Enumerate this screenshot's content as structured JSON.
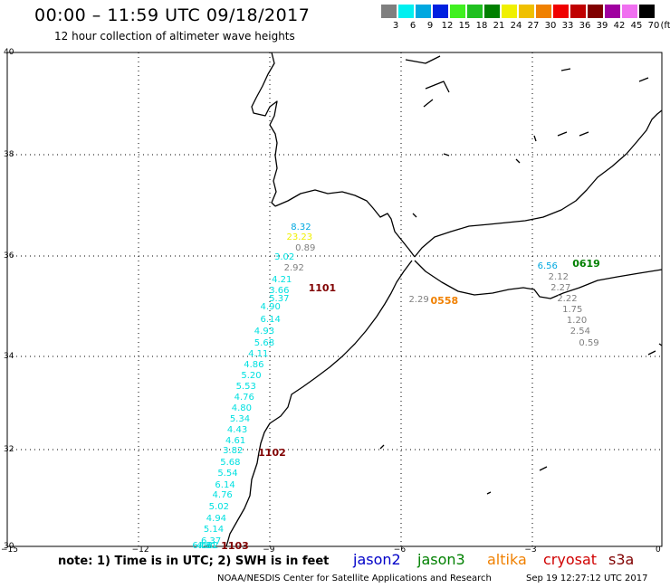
{
  "header": {
    "title": "00:00 – 11:59 UTC 09/18/2017",
    "subtitle": "12 hour collection of altimeter wave heights"
  },
  "legend": {
    "unit": "(ft)",
    "bins": [
      {
        "label": "3",
        "color": "#7f7f7f"
      },
      {
        "label": "6",
        "color": "#00f0f0"
      },
      {
        "label": "9",
        "color": "#00a8e0"
      },
      {
        "label": "12",
        "color": "#0020e0"
      },
      {
        "label": "15",
        "color": "#40f020"
      },
      {
        "label": "18",
        "color": "#20c020"
      },
      {
        "label": "21",
        "color": "#008000"
      },
      {
        "label": "24",
        "color": "#f0f000"
      },
      {
        "label": "27",
        "color": "#f0c000"
      },
      {
        "label": "30",
        "color": "#f08000"
      },
      {
        "label": "33",
        "color": "#f00000"
      },
      {
        "label": "36",
        "color": "#c00000"
      },
      {
        "label": "39",
        "color": "#800000"
      },
      {
        "label": "42",
        "color": "#a000a0"
      },
      {
        "label": "45",
        "color": "#f070f0"
      },
      {
        "label": "70",
        "color": "#000000"
      }
    ]
  },
  "axes": {
    "lat_labels": [
      "40",
      "38",
      "36",
      "34",
      "32",
      "30"
    ],
    "lon_labels": [
      "−15",
      "−12",
      "−9",
      "−6",
      "−3",
      "0"
    ]
  },
  "observations": [
    {
      "text": "8.32",
      "color": "#00a8e0",
      "lon": -8.5,
      "lat": 36.55
    },
    {
      "text": "23.23",
      "color": "#f0f000",
      "lon": -8.6,
      "lat": 36.35
    },
    {
      "text": "0.89",
      "color": "#7f7f7f",
      "lon": -8.4,
      "lat": 36.15
    },
    {
      "text": "3.02",
      "color": "#00e0e0",
      "lon": -8.88,
      "lat": 35.97
    },
    {
      "text": "2.92",
      "color": "#7f7f7f",
      "lon": -8.66,
      "lat": 35.74
    },
    {
      "text": "4.21",
      "color": "#00e0e0",
      "lon": -8.94,
      "lat": 35.52
    },
    {
      "text": "3.66",
      "color": "#00e0e0",
      "lon": -9.0,
      "lat": 35.3
    },
    {
      "text": "5.37",
      "color": "#00e0e0",
      "lon": -9.0,
      "lat": 35.14
    },
    {
      "text": "4.90",
      "color": "#00e0e0",
      "lon": -9.2,
      "lat": 34.98
    },
    {
      "text": "6.14",
      "color": "#00e0e0",
      "lon": -9.2,
      "lat": 34.72
    },
    {
      "text": "4.93",
      "color": "#00e0e0",
      "lon": -9.34,
      "lat": 34.48
    },
    {
      "text": "5.68",
      "color": "#00e0e0",
      "lon": -9.34,
      "lat": 34.26
    },
    {
      "text": "4.11",
      "color": "#00e0e0",
      "lon": -9.48,
      "lat": 34.04
    },
    {
      "text": "4.86",
      "color": "#00e0e0",
      "lon": -9.58,
      "lat": 33.8
    },
    {
      "text": "5.20",
      "color": "#00e0e0",
      "lon": -9.64,
      "lat": 33.58
    },
    {
      "text": "5.53",
      "color": "#00e0e0",
      "lon": -9.76,
      "lat": 33.34
    },
    {
      "text": "4.76",
      "color": "#00e0e0",
      "lon": -9.8,
      "lat": 33.1
    },
    {
      "text": "4.80",
      "color": "#00e0e0",
      "lon": -9.86,
      "lat": 32.88
    },
    {
      "text": "5.34",
      "color": "#00e0e0",
      "lon": -9.9,
      "lat": 32.64
    },
    {
      "text": "4.43",
      "color": "#00e0e0",
      "lon": -9.96,
      "lat": 32.4
    },
    {
      "text": "4.61",
      "color": "#00e0e0",
      "lon": -10.0,
      "lat": 32.18
    },
    {
      "text": "3.82",
      "color": "#00e0e0",
      "lon": -10.06,
      "lat": 31.96
    },
    {
      "text": "5.68",
      "color": "#00e0e0",
      "lon": -10.12,
      "lat": 31.72
    },
    {
      "text": "5.54",
      "color": "#00e0e0",
      "lon": -10.18,
      "lat": 31.5
    },
    {
      "text": "6.14",
      "color": "#00e0e0",
      "lon": -10.24,
      "lat": 31.26
    },
    {
      "text": "4.76",
      "color": "#00e0e0",
      "lon": -10.3,
      "lat": 31.04
    },
    {
      "text": "5.02",
      "color": "#00e0e0",
      "lon": -10.38,
      "lat": 30.8
    },
    {
      "text": "4.94",
      "color": "#00e0e0",
      "lon": -10.44,
      "lat": 30.56
    },
    {
      "text": "5.14",
      "color": "#00e0e0",
      "lon": -10.5,
      "lat": 30.34
    },
    {
      "text": "6.37",
      "color": "#00e0e0",
      "lon": -10.56,
      "lat": 30.1
    },
    {
      "text": "4.82",
      "color": "#00e0e0",
      "lon": -10.62,
      "lat": 29.88
    },
    {
      "text": "4.91",
      "color": "#00e0e0",
      "lon": -10.66,
      "lat": 29.64
    },
    {
      "text": "6.66",
      "color": "#00e0e0",
      "lon": -10.76,
      "lat": 29.42
    },
    {
      "text": "2.29",
      "color": "#7f7f7f",
      "lon": -5.8,
      "lat": 35.12
    },
    {
      "text": "6.56",
      "color": "#00a8e0",
      "lon": -2.85,
      "lat": 35.78
    },
    {
      "text": "2.12",
      "color": "#7f7f7f",
      "lon": -2.6,
      "lat": 35.56
    },
    {
      "text": "2.27",
      "color": "#7f7f7f",
      "lon": -2.55,
      "lat": 35.36
    },
    {
      "text": "2.22",
      "color": "#7f7f7f",
      "lon": -2.4,
      "lat": 35.14
    },
    {
      "text": "1.75",
      "color": "#7f7f7f",
      "lon": -2.28,
      "lat": 34.92
    },
    {
      "text": "1.20",
      "color": "#7f7f7f",
      "lon": -2.18,
      "lat": 34.7
    },
    {
      "text": "2.54",
      "color": "#7f7f7f",
      "lon": -2.1,
      "lat": 34.48
    },
    {
      "text": "0.59",
      "color": "#7f7f7f",
      "lon": -1.9,
      "lat": 34.26
    }
  ],
  "passes": [
    {
      "text": "1101",
      "color": "#800000",
      "lon": -8.1,
      "lat": 35.35
    },
    {
      "text": "0558",
      "color": "#f08000",
      "lon": -5.3,
      "lat": 35.1
    },
    {
      "text": "0619",
      "color": "#008000",
      "lon": -2.05,
      "lat": 35.83
    },
    {
      "text": "1102",
      "color": "#800000",
      "lon": -9.25,
      "lat": 31.92
    },
    {
      "text": "1103",
      "color": "#800000",
      "lon": -10.1,
      "lat": 29.42
    }
  ],
  "footer": {
    "note": "note: 1) Time is in UTC; 2) SWH is in feet",
    "satellites": [
      {
        "name": "jason2",
        "color": "#0000c8"
      },
      {
        "name": "jason3",
        "color": "#008000"
      },
      {
        "name": "altika",
        "color": "#f08000"
      },
      {
        "name": "cryosat",
        "color": "#d00000"
      },
      {
        "name": "s3a",
        "color": "#800000"
      }
    ],
    "credit": "NOAA/NESDIS Center for Satellite Applications and Research",
    "stamp": "Sep 19 12:27:12 UTC 2017"
  }
}
